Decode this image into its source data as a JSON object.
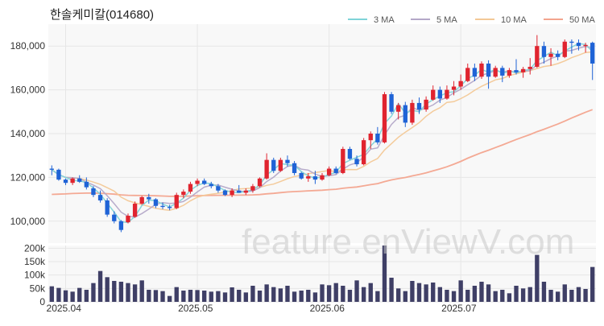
{
  "chart_data": {
    "type": "candlestick",
    "title": "한솔케미칼(014680)",
    "watermark": "feature.enViewV.com",
    "colors": {
      "up": "#e0242f",
      "down": "#1f63d6",
      "volume": "#3f3f66",
      "ma3": "#7fd3d8",
      "ma5": "#b4a8c8",
      "ma10": "#f3c896",
      "ma50": "#f3a48e",
      "grid": "#e6e6e6"
    },
    "legend": [
      {
        "name": "3 MA",
        "color": "#7fd3d8"
      },
      {
        "name": "5 MA",
        "color": "#b4a8c8"
      },
      {
        "name": "10 MA",
        "color": "#f3c896"
      },
      {
        "name": "50 MA",
        "color": "#f3a48e"
      }
    ],
    "price_axis": {
      "min": 90000,
      "max": 190000,
      "ticks": [
        "100,000",
        "120,000",
        "140,000",
        "160,000",
        "180,000"
      ],
      "tick_values": [
        100000,
        120000,
        140000,
        160000,
        180000
      ]
    },
    "volume_axis": {
      "min": 0,
      "max": 210000,
      "ticks": [
        "0",
        "50k",
        "100k",
        "150k",
        "200k"
      ],
      "tick_values": [
        0,
        50000,
        100000,
        150000,
        200000
      ]
    },
    "x_labels": [
      {
        "label": "2025.04",
        "index": 2
      },
      {
        "label": "2025.05",
        "index": 21
      },
      {
        "label": "2025.06",
        "index": 40
      },
      {
        "label": "2025.07",
        "index": 59
      }
    ],
    "candles": [
      [
        124000,
        125500,
        121000,
        123500,
        58000
      ],
      [
        123500,
        124000,
        118500,
        119000,
        52000
      ],
      [
        119000,
        119500,
        116500,
        117500,
        43000
      ],
      [
        117500,
        120000,
        116500,
        119500,
        38000
      ],
      [
        119500,
        121000,
        117500,
        118000,
        52000
      ],
      [
        118000,
        120000,
        114500,
        115500,
        45000
      ],
      [
        115000,
        116000,
        111000,
        112000,
        70000
      ],
      [
        112000,
        114000,
        108500,
        109500,
        115000
      ],
      [
        109500,
        110500,
        102000,
        103000,
        92000
      ],
      [
        103000,
        104500,
        99000,
        100000,
        78000
      ],
      [
        100000,
        100500,
        95000,
        96000,
        75000
      ],
      [
        99500,
        103500,
        99000,
        102500,
        70000
      ],
      [
        102000,
        109000,
        101500,
        108000,
        65000
      ],
      [
        108000,
        111500,
        107500,
        111000,
        80000
      ],
      [
        111000,
        112500,
        108000,
        110000,
        45000
      ],
      [
        110000,
        110500,
        106000,
        107000,
        44000
      ],
      [
        107000,
        108500,
        105500,
        106500,
        40000
      ],
      [
        106500,
        107500,
        105000,
        106000,
        22000
      ],
      [
        106000,
        113000,
        105500,
        112000,
        55000
      ],
      [
        112000,
        114500,
        110500,
        113500,
        42000
      ],
      [
        113500,
        118000,
        112500,
        117000,
        45000
      ],
      [
        117000,
        119500,
        116000,
        118500,
        44000
      ],
      [
        118500,
        119500,
        116500,
        117000,
        42000
      ],
      [
        117000,
        118000,
        115000,
        116000,
        38000
      ],
      [
        116000,
        117000,
        113000,
        114000,
        40000
      ],
      [
        114000,
        114500,
        111500,
        112000,
        35000
      ],
      [
        112000,
        115000,
        111000,
        114000,
        54000
      ],
      [
        114000,
        116500,
        113000,
        113000,
        45000
      ],
      [
        113000,
        115000,
        112000,
        114000,
        35000
      ],
      [
        114000,
        117000,
        113000,
        116000,
        60000
      ],
      [
        116000,
        120000,
        115500,
        119500,
        42000
      ],
      [
        119500,
        131000,
        119000,
        128000,
        65000
      ],
      [
        128000,
        129000,
        122000,
        123000,
        55000
      ],
      [
        123000,
        129000,
        122500,
        128000,
        50000
      ],
      [
        128000,
        130000,
        125000,
        126500,
        60000
      ],
      [
        126500,
        127500,
        121000,
        122000,
        38000
      ],
      [
        122000,
        122500,
        119000,
        119500,
        42000
      ],
      [
        119500,
        122000,
        118000,
        120500,
        45000
      ],
      [
        120500,
        123000,
        117000,
        119000,
        35000
      ],
      [
        119000,
        122000,
        118500,
        121000,
        65000
      ],
      [
        121000,
        125000,
        120500,
        124000,
        62000
      ],
      [
        124000,
        125000,
        121500,
        122000,
        70000
      ],
      [
        122000,
        134000,
        121500,
        133000,
        60000
      ],
      [
        133000,
        134000,
        128000,
        128500,
        45000
      ],
      [
        128500,
        130000,
        125000,
        126000,
        80000
      ],
      [
        126000,
        138000,
        125500,
        137000,
        55000
      ],
      [
        137000,
        141000,
        133000,
        140000,
        70000
      ],
      [
        140000,
        143000,
        135000,
        136000,
        40000
      ],
      [
        136000,
        159000,
        135500,
        158000,
        210000
      ],
      [
        158000,
        159000,
        149000,
        150000,
        90000
      ],
      [
        150000,
        154000,
        146500,
        153000,
        50000
      ],
      [
        153000,
        154500,
        143000,
        145000,
        40000
      ],
      [
        145000,
        155500,
        144000,
        154000,
        78000
      ],
      [
        154000,
        156500,
        149000,
        151000,
        70000
      ],
      [
        151000,
        157000,
        150000,
        155500,
        65000
      ],
      [
        155500,
        162000,
        155000,
        160000,
        72000
      ],
      [
        160000,
        161500,
        154000,
        156000,
        55000
      ],
      [
        156000,
        162000,
        155500,
        160000,
        45000
      ],
      [
        160000,
        164000,
        157500,
        161500,
        40000
      ],
      [
        161500,
        167000,
        160000,
        164000,
        80000
      ],
      [
        164000,
        172000,
        163500,
        170000,
        45000
      ],
      [
        170000,
        172000,
        164000,
        166000,
        60000
      ],
      [
        166000,
        173000,
        165000,
        172000,
        75000
      ],
      [
        172000,
        173500,
        160500,
        166000,
        65000
      ],
      [
        166000,
        171000,
        165500,
        170000,
        40000
      ],
      [
        170000,
        171000,
        163500,
        166500,
        45000
      ],
      [
        166500,
        170000,
        165500,
        169000,
        32000
      ],
      [
        169000,
        174000,
        167000,
        168000,
        60000
      ],
      [
        168000,
        170500,
        165500,
        169500,
        50000
      ],
      [
        169500,
        174500,
        167000,
        170500,
        55000
      ],
      [
        170500,
        185000,
        170000,
        180000,
        175000
      ],
      [
        180000,
        182000,
        172000,
        175000,
        75000
      ],
      [
        175000,
        179000,
        171000,
        176500,
        45000
      ],
      [
        176500,
        178000,
        173500,
        175000,
        38000
      ],
      [
        175000,
        183000,
        174500,
        182000,
        65000
      ],
      [
        182000,
        183000,
        176500,
        181500,
        45000
      ],
      [
        181500,
        183000,
        178000,
        180000,
        55000
      ],
      [
        180000,
        181500,
        177000,
        180500,
        48000
      ],
      [
        181500,
        182000,
        164500,
        172000,
        130000
      ]
    ]
  }
}
